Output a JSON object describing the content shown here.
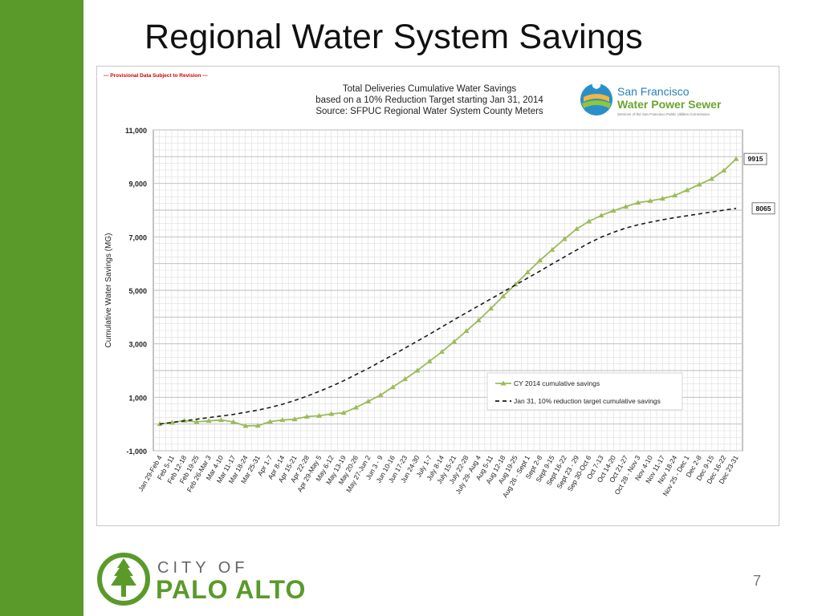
{
  "slide": {
    "title": "Regional Water System Savings",
    "page_number": "7",
    "accent_color": "#5a9a2a"
  },
  "logo": {
    "city_of": "CITY OF",
    "name": "PALO ALTO",
    "icon": "tree-icon",
    "color": "#5a9a2a"
  },
  "sfpuc_logo": {
    "line1": "San Francisco",
    "line2": "Water Power Sewer",
    "tagline": "Services of the San Francisco Public Utilities Commission",
    "icon": "water-drop-icon"
  },
  "chart_data": {
    "type": "line",
    "provisional_note": "--- Provisional Data Subject to Revision ---",
    "title_lines": [
      "Total Deliveries Cumulative Water Savings",
      "based on a 10% Reduction Target starting Jan 31, 2014",
      "Source:  SFPUC Regional Water System County Meters"
    ],
    "ylabel": "Cumulative Water Savings (MG)",
    "ylim": [
      -1000,
      11000
    ],
    "yticks": [
      "-1,000",
      "1,000",
      "3,000",
      "5,000",
      "7,000",
      "9,000",
      "11,000"
    ],
    "ytick_values": [
      -1000,
      1000,
      3000,
      5000,
      7000,
      9000,
      11000
    ],
    "grid": true,
    "legend_position": "bottom-right",
    "categories": [
      "Jan 29-Feb 4",
      "Feb 5-11",
      "Feb 12-18",
      "Feb 19-25",
      "Feb 26-Mar  3",
      "Mar 4-10",
      "Mar 11-17",
      "Mar 18-24",
      "Mar 25-31",
      "Apr 1-7",
      "Apr 8-14",
      "Apr 15-21",
      "Apr 22-28",
      "Apr 29-May 5",
      "May 6-12",
      "May 13-19",
      "May 20-26",
      "May 27-Jun 2",
      "Jun 3 - 9",
      "Jun 10-16",
      "Jun 17-23",
      "Jun 24-30",
      "July 1-7",
      "July 8-14",
      "July 15-21",
      "July 22-28",
      "July 29- Aug 4",
      "Aug 5-11",
      "Aug 12-18",
      "Aug 19-25",
      "Aug 26 - Sept 1",
      "Sept 2-8",
      "Sept 9-15",
      "Sept 16-22",
      "Sept 23 - 29",
      "Sep 30-Oct 6",
      "Oct 7-13",
      "Oct 14-20",
      "Oct 21-27",
      "Oct 28 - Nov 3",
      "Nov 4-10",
      "Nov 11-17",
      "Nov 18-24",
      "Nov 25 - Dec 1",
      "Dec 2-8",
      "Dec 9-15",
      "Dec 16-22",
      "Dec 23-31"
    ],
    "series": [
      {
        "name": "CY 2014 cumulative savings",
        "color": "#9bbb59",
        "style": "solid",
        "marker": "triangle",
        "values": [
          0,
          50,
          130,
          80,
          120,
          150,
          80,
          -70,
          -60,
          90,
          150,
          180,
          280,
          310,
          380,
          420,
          620,
          850,
          1080,
          1380,
          1680,
          2000,
          2350,
          2700,
          3080,
          3480,
          3880,
          4320,
          4780,
          5220,
          5680,
          6120,
          6520,
          6920,
          7300,
          7580,
          7800,
          7980,
          8130,
          8280,
          8350,
          8430,
          8550,
          8750,
          8960,
          9170,
          9480,
          9915
        ],
        "end_label": "9915"
      },
      {
        "name": "Jan 31, 10% reduction target cumulative savings",
        "color": "#1a1a1a",
        "style": "dashed",
        "marker": "none",
        "values": [
          0,
          60,
          120,
          180,
          240,
          300,
          360,
          440,
          520,
          620,
          740,
          880,
          1040,
          1220,
          1410,
          1620,
          1850,
          2080,
          2330,
          2580,
          2840,
          3100,
          3360,
          3630,
          3900,
          4160,
          4420,
          4680,
          4940,
          5200,
          5460,
          5720,
          5990,
          6250,
          6510,
          6770,
          6990,
          7170,
          7330,
          7450,
          7550,
          7640,
          7720,
          7790,
          7860,
          7930,
          8000,
          8065
        ],
        "end_label": "8065"
      }
    ]
  }
}
